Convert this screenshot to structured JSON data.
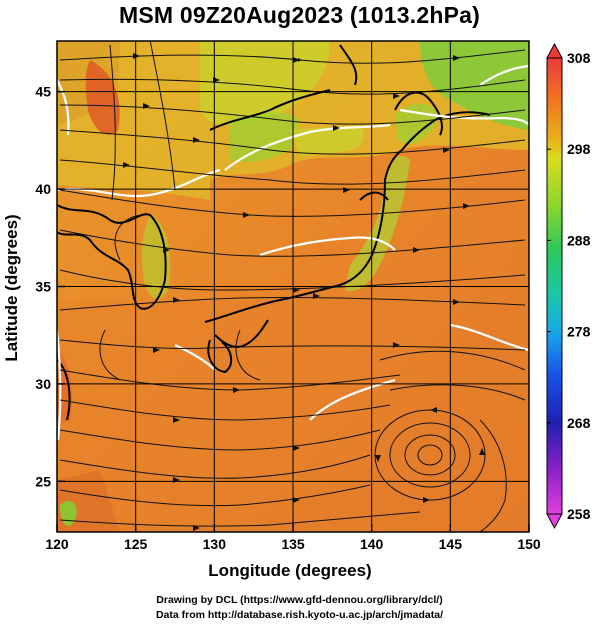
{
  "title": "MSM 09Z20Aug2023 (1013.2hPa)",
  "xaxis": {
    "label": "Longitude (degrees)",
    "range": [
      120,
      150
    ],
    "ticks": [
      120,
      125,
      130,
      135,
      140,
      145,
      150
    ]
  },
  "yaxis": {
    "label": "Latitude  (degrees)",
    "range": [
      22.4,
      47.6
    ],
    "ticks": [
      25,
      30,
      35,
      40,
      45
    ]
  },
  "colorbar": {
    "range": [
      258,
      308
    ],
    "ticks": [
      308,
      298,
      288,
      278,
      268,
      258
    ],
    "colors": [
      "#ee3a3a",
      "#f07a1e",
      "#e8b21a",
      "#d8dc1e",
      "#8ed62a",
      "#2ec85a",
      "#18c8a8",
      "#18a8e8",
      "#1850e8",
      "#2020b0",
      "#8a20c8",
      "#e040e0"
    ]
  },
  "grid": true,
  "credits": [
    "Drawing by DCL (https://www.gfd-dennou.org/library/dcl/)",
    "Data from http://database.rish.kyoto-u.ac.jp/arch/jmadata/"
  ]
}
